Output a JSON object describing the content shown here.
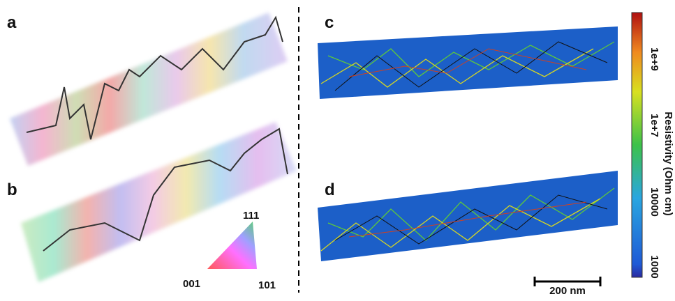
{
  "panels": {
    "a": "a",
    "b": "b",
    "c": "c",
    "d": "d"
  },
  "ipf_key": {
    "top": "111",
    "left": "001",
    "right": "101"
  },
  "colorbar": {
    "label": "Resistivity (Ohm cm)",
    "ticks": [
      "1e+9",
      "1e+7",
      "10000",
      "1000"
    ]
  },
  "scale_bar": "200 nm"
}
